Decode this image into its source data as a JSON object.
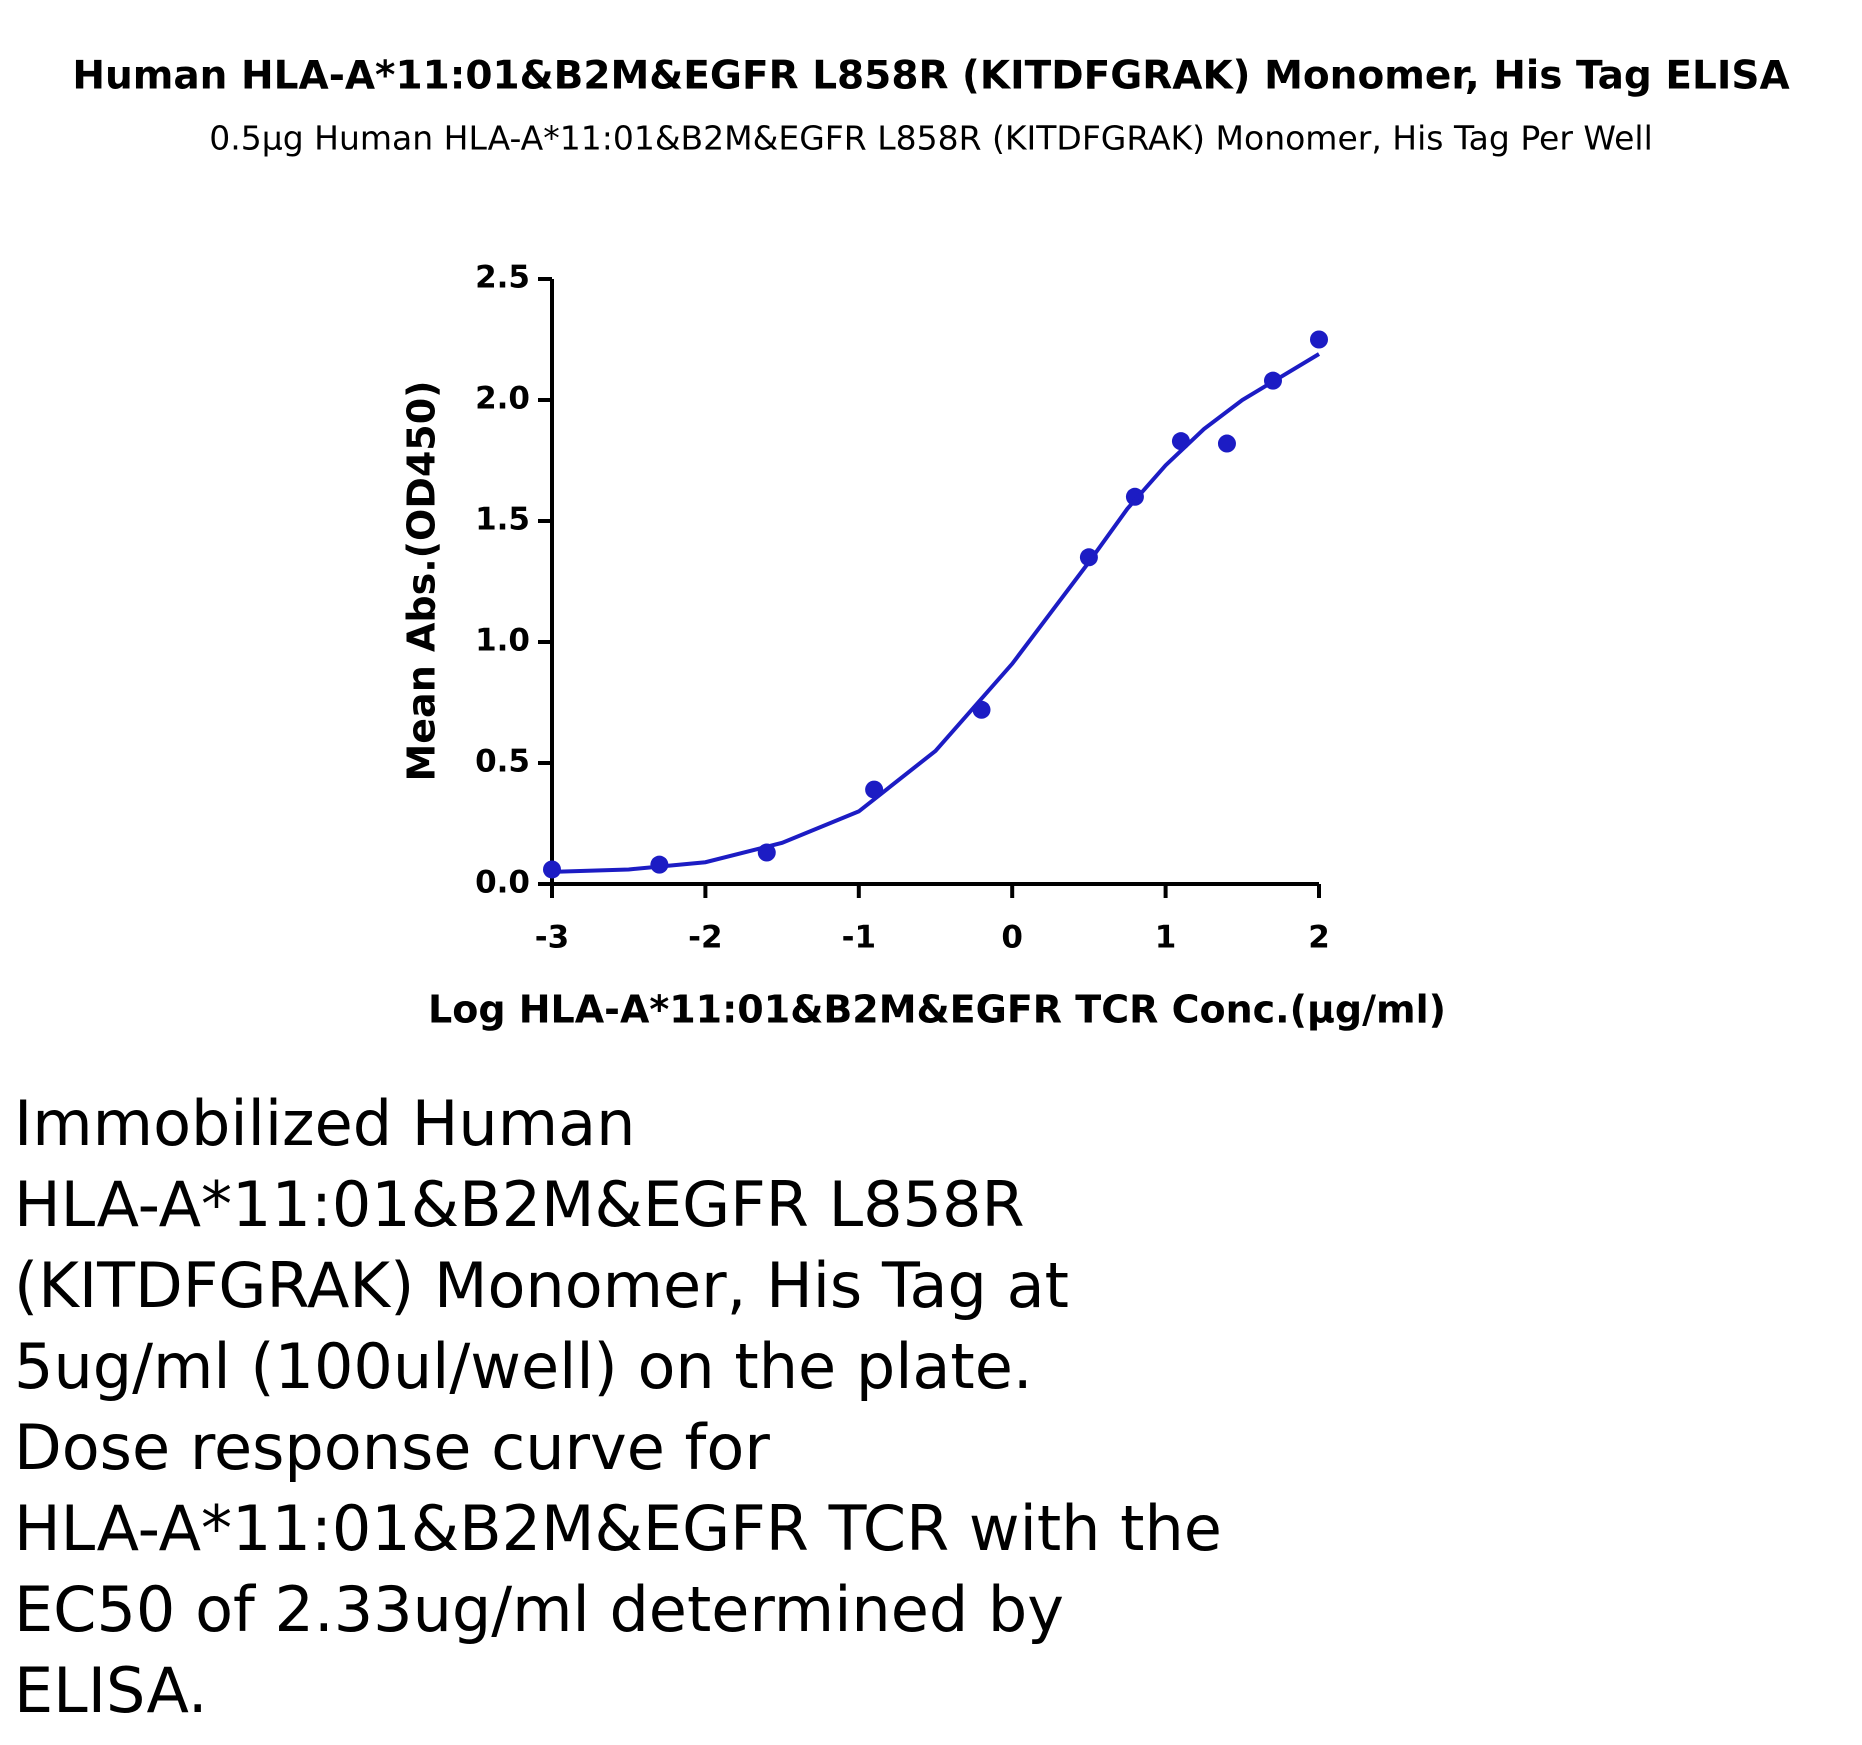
{
  "title": "Human HLA-A*11:01&B2M&EGFR L858R (KITDFGRAK) Monomer, His Tag ELISA",
  "subtitle": "0.5μg Human HLA-A*11:01&B2M&EGFR L858R (KITDFGRAK) Monomer, His Tag Per Well",
  "chart_data": {
    "type": "scatter",
    "x_label": "Log HLA-A*11:01&B2M&EGFR TCR Conc.(μg/ml)",
    "y_label": "Mean Abs.(OD450)",
    "xlim": [
      -3,
      2
    ],
    "ylim": [
      0,
      2.5
    ],
    "xticks": [
      -3,
      -2,
      -1,
      0,
      1,
      2
    ],
    "yticks": [
      {
        "value": 0,
        "label": "0.0"
      },
      0.5,
      {
        "value": 1,
        "label": "1.0"
      },
      1.5,
      {
        "value": 2,
        "label": "2.0"
      },
      2.5
    ],
    "series": [
      {
        "style": "points",
        "color": "#1c1cc4",
        "x": [
          -3,
          -2.3,
          -1.6,
          -0.9,
          -0.2,
          0.5,
          0.8,
          1.1,
          1.4,
          1.7,
          2.0
        ],
        "values": [
          0.06,
          0.08,
          0.13,
          0.39,
          0.72,
          1.35,
          1.6,
          1.83,
          1.82,
          2.08,
          2.25
        ]
      },
      {
        "style": "line",
        "color": "#1c1cc4",
        "x": [
          -3,
          -2.5,
          -2,
          -1.5,
          -1,
          -0.5,
          0,
          0.25,
          0.5,
          0.75,
          1,
          1.25,
          1.5,
          2
        ],
        "values": [
          0.05,
          0.06,
          0.09,
          0.17,
          0.3,
          0.55,
          0.91,
          1.12,
          1.33,
          1.55,
          1.73,
          1.88,
          2.0,
          2.19
        ]
      }
    ]
  },
  "caption": [
    "Immobilized Human",
    "HLA-A*11:01&B2M&EGFR L858R",
    "(KITDFGRAK) Monomer, His Tag at",
    "5ug/ml (100ul/well) on the plate.",
    "Dose response curve for",
    "HLA-A*11:01&B2M&EGFR TCR with the",
    "EC50 of 2.33ug/ml determined by",
    "ELISA."
  ]
}
